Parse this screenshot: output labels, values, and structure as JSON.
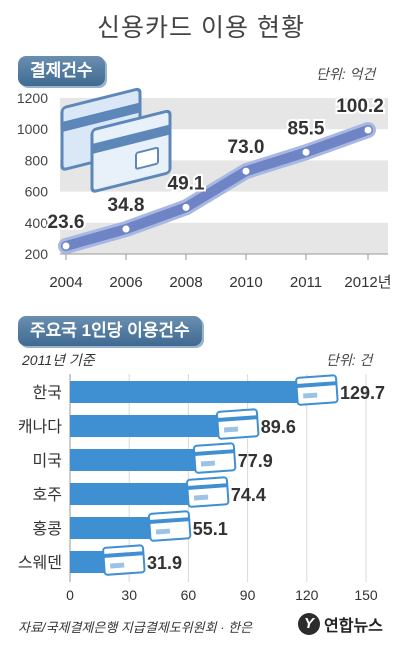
{
  "title": "신용카드 이용 현황",
  "source": "자료/국제결제은행 지급결제도위원회 · 한은",
  "logo": "연합뉴스",
  "logo_mark": "Y",
  "colors": {
    "accent": "#3f8fd3",
    "line": "#6f84c4",
    "grid": "#e6e6e6",
    "badge": "#4f7ba3"
  },
  "chart_data": [
    {
      "type": "line",
      "section_label": "결제건수",
      "unit": "단위: 억건",
      "x": [
        "2004",
        "2006",
        "2008",
        "2010",
        "2011",
        "2012년"
      ],
      "values": [
        23.6,
        34.8,
        49.1,
        73.0,
        85.5,
        100.2
      ],
      "value_labels": [
        "23.6",
        "34.8",
        "49.1",
        "73.0",
        "85.5",
        "100.2"
      ],
      "y_ticks": [
        "200",
        "400",
        "600",
        "800",
        "1000",
        "1200"
      ],
      "grid": "horizontal bands"
    },
    {
      "type": "bar",
      "orientation": "horizontal",
      "section_label": "주요국 1인당 이용건수",
      "subtitle": "2011년 기준",
      "unit": "단위: 건",
      "categories": [
        "한국",
        "캐나다",
        "미국",
        "호주",
        "홍콩",
        "스웨덴"
      ],
      "values": [
        129.7,
        89.6,
        77.9,
        74.4,
        55.1,
        31.9
      ],
      "value_labels": [
        "129.7",
        "89.6",
        "77.9",
        "74.4",
        "55.1",
        "31.9"
      ],
      "x_ticks": [
        "0",
        "30",
        "60",
        "90",
        "120",
        "150"
      ],
      "xlim": [
        0,
        150
      ]
    }
  ]
}
